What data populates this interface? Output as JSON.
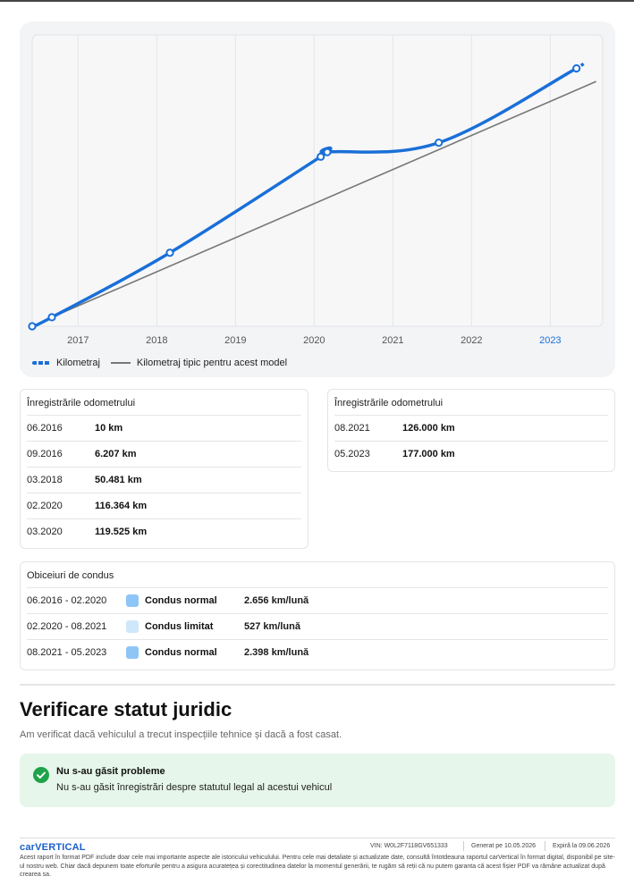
{
  "chart_data": {
    "type": "line",
    "x_ticks": [
      "2017",
      "2018",
      "2019",
      "2020",
      "2021",
      "2022",
      "2023"
    ],
    "x_range": [
      "2016-06",
      "2023-09"
    ],
    "y_range_km": [
      0,
      200000
    ],
    "series": [
      {
        "name": "Kilometraj",
        "points": [
          {
            "date": "2016-06",
            "km": 10
          },
          {
            "date": "2016-09",
            "km": 6207
          },
          {
            "date": "2018-03",
            "km": 50481
          },
          {
            "date": "2020-02",
            "km": 116364
          },
          {
            "date": "2020-03",
            "km": 119525
          },
          {
            "date": "2021-08",
            "km": 126000
          },
          {
            "date": "2023-05",
            "km": 177000
          }
        ]
      },
      {
        "name": "Kilometraj tipic pentru acest model",
        "points": [
          {
            "date": "2016-09",
            "km": 6207
          },
          {
            "date": "2023-08",
            "km": 168000
          }
        ]
      }
    ],
    "highlighted_tick": "2023",
    "grid": true,
    "legend_position": "bottom-left"
  },
  "colors": {
    "km_line": "#1a6fd8",
    "typical_line": "#777777",
    "highlight_tick": "#1a6fd8",
    "normal_driving": "#8ec5f7",
    "limited_driving": "#cfe7fb",
    "success": "#1fa34a",
    "success_bg": "#e6f6ea",
    "brand": "#1a5fc8"
  },
  "legend": {
    "km_label": "Kilometraj",
    "typical_label": "Kilometraj tipic pentru acest model"
  },
  "odometer_left": {
    "title": "Înregistrările odometrului",
    "rows": [
      {
        "date": "06.2016",
        "km": "10 km"
      },
      {
        "date": "09.2016",
        "km": "6.207 km"
      },
      {
        "date": "03.2018",
        "km": "50.481 km"
      },
      {
        "date": "02.2020",
        "km": "116.364 km"
      },
      {
        "date": "03.2020",
        "km": "119.525 km"
      }
    ]
  },
  "odometer_right": {
    "title": "Înregistrările odometrului",
    "rows": [
      {
        "date": "08.2021",
        "km": "126.000 km"
      },
      {
        "date": "05.2023",
        "km": "177.000 km"
      }
    ]
  },
  "driving": {
    "title": "Obiceiuri de condus",
    "rows": [
      {
        "period": "06.2016 - 02.2020",
        "type": "Condus normal",
        "rate": "2.656 km/lună",
        "color_key": "normal"
      },
      {
        "period": "02.2020 - 08.2021",
        "type": "Condus limitat",
        "rate": "527 km/lună",
        "color_key": "limited"
      },
      {
        "period": "08.2021 - 05.2023",
        "type": "Condus normal",
        "rate": "2.398 km/lună",
        "color_key": "normal"
      }
    ]
  },
  "legal": {
    "heading": "Verificare statut juridic",
    "subtitle": "Am verificat dacă vehiculul a trecut inspecțiile tehnice și dacă a fost casat.",
    "result_title": "Nu s-au găsit probleme",
    "result_text": "Nu s-au găsit înregistrări despre statutul legal al acestui vehicul"
  },
  "footer": {
    "logo": "carVERTICAL",
    "vin_label": "VIN:",
    "vin": "W0L2F7118GV651333",
    "generated_label": "Generat pe",
    "generated": "10.05.2026",
    "expires_label": "Expiră la",
    "expires": "09.06.2026",
    "disclaimer": "Acest raport în format PDF include doar cele mai importante aspecte ale istoricului vehiculului. Pentru cele mai detaliate și actualizate date, consultă întotdeauna raportul carVertical în format digital, disponibil pe site-ul nostru web. Chiar dacă depunem toate eforturile pentru a asigura acuratețea și corectitudinea datelor la momentul generării, te rugăm să reții că nu putem garanta că acest fișier PDF va rămâne actualizat după crearea sa."
  }
}
